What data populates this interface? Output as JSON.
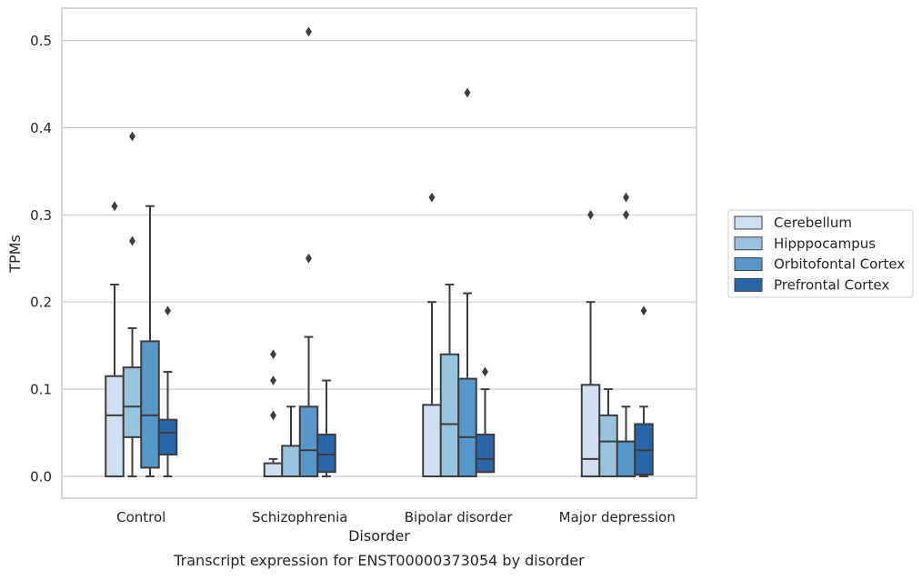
{
  "chart_data": {
    "type": "box",
    "title": "",
    "caption": "Transcript expression for ENST00000373054 by disorder",
    "xlabel": "Disorder",
    "ylabel": "TPMs",
    "ylim": [
      -0.025,
      0.537
    ],
    "yticks": [
      0.0,
      0.1,
      0.2,
      0.3,
      0.4,
      0.5
    ],
    "ytick_labels": [
      "0.0",
      "0.1",
      "0.2",
      "0.3",
      "0.4",
      "0.5"
    ],
    "grid": "horizontal",
    "legend_position": "right-center",
    "categories": [
      "Control",
      "Schizophrenia",
      "Bipolar disorder",
      "Major depression"
    ],
    "series": [
      {
        "name": "Cerebellum",
        "color": "#d0e0f1",
        "boxes": [
          {
            "whislo": 0.0,
            "q1": 0.0,
            "med": 0.07,
            "q3": 0.115,
            "whishi": 0.22,
            "fliers": [
              0.31
            ]
          },
          {
            "whislo": 0.0,
            "q1": 0.0,
            "med": 0.0,
            "q3": 0.015,
            "whishi": 0.02,
            "fliers": [
              0.07,
              0.11,
              0.14
            ]
          },
          {
            "whislo": 0.0,
            "q1": 0.0,
            "med": 0.0,
            "q3": 0.082,
            "whishi": 0.2,
            "fliers": [
              0.32
            ]
          },
          {
            "whislo": 0.0,
            "q1": 0.0,
            "med": 0.02,
            "q3": 0.105,
            "whishi": 0.2,
            "fliers": [
              0.3
            ]
          }
        ]
      },
      {
        "name": "Hipppocampus",
        "color": "#9ac3dd",
        "boxes": [
          {
            "whislo": 0.0,
            "q1": 0.045,
            "med": 0.08,
            "q3": 0.125,
            "whishi": 0.17,
            "fliers": [
              0.27,
              0.39
            ]
          },
          {
            "whislo": 0.0,
            "q1": 0.0,
            "med": 0.0,
            "q3": 0.035,
            "whishi": 0.08,
            "fliers": []
          },
          {
            "whislo": 0.0,
            "q1": 0.0,
            "med": 0.06,
            "q3": 0.14,
            "whishi": 0.22,
            "fliers": []
          },
          {
            "whislo": 0.0,
            "q1": 0.0,
            "med": 0.04,
            "q3": 0.07,
            "whishi": 0.1,
            "fliers": []
          }
        ]
      },
      {
        "name": "Orbitofontal Cortex",
        "color": "#5898c9",
        "boxes": [
          {
            "whislo": 0.0,
            "q1": 0.01,
            "med": 0.07,
            "q3": 0.155,
            "whishi": 0.31,
            "fliers": []
          },
          {
            "whislo": 0.0,
            "q1": 0.0,
            "med": 0.03,
            "q3": 0.08,
            "whishi": 0.16,
            "fliers": [
              0.25,
              0.51
            ]
          },
          {
            "whislo": 0.0,
            "q1": 0.0,
            "med": 0.045,
            "q3": 0.112,
            "whishi": 0.21,
            "fliers": [
              0.44
            ]
          },
          {
            "whislo": 0.0,
            "q1": 0.0,
            "med": 0.04,
            "q3": 0.04,
            "whishi": 0.08,
            "fliers": [
              0.3,
              0.32
            ]
          }
        ]
      },
      {
        "name": "Prefrontal Cortex",
        "color": "#2767a9",
        "boxes": [
          {
            "whislo": 0.0,
            "q1": 0.025,
            "med": 0.05,
            "q3": 0.065,
            "whishi": 0.12,
            "fliers": [
              0.19
            ]
          },
          {
            "whislo": 0.0,
            "q1": 0.005,
            "med": 0.025,
            "q3": 0.048,
            "whishi": 0.11,
            "fliers": []
          },
          {
            "whislo": 0.005,
            "q1": 0.005,
            "med": 0.02,
            "q3": 0.048,
            "whishi": 0.1,
            "fliers": [
              0.12
            ]
          },
          {
            "whislo": 0.0,
            "q1": 0.002,
            "med": 0.03,
            "q3": 0.06,
            "whishi": 0.08,
            "fliers": [
              0.19
            ]
          }
        ]
      }
    ]
  }
}
